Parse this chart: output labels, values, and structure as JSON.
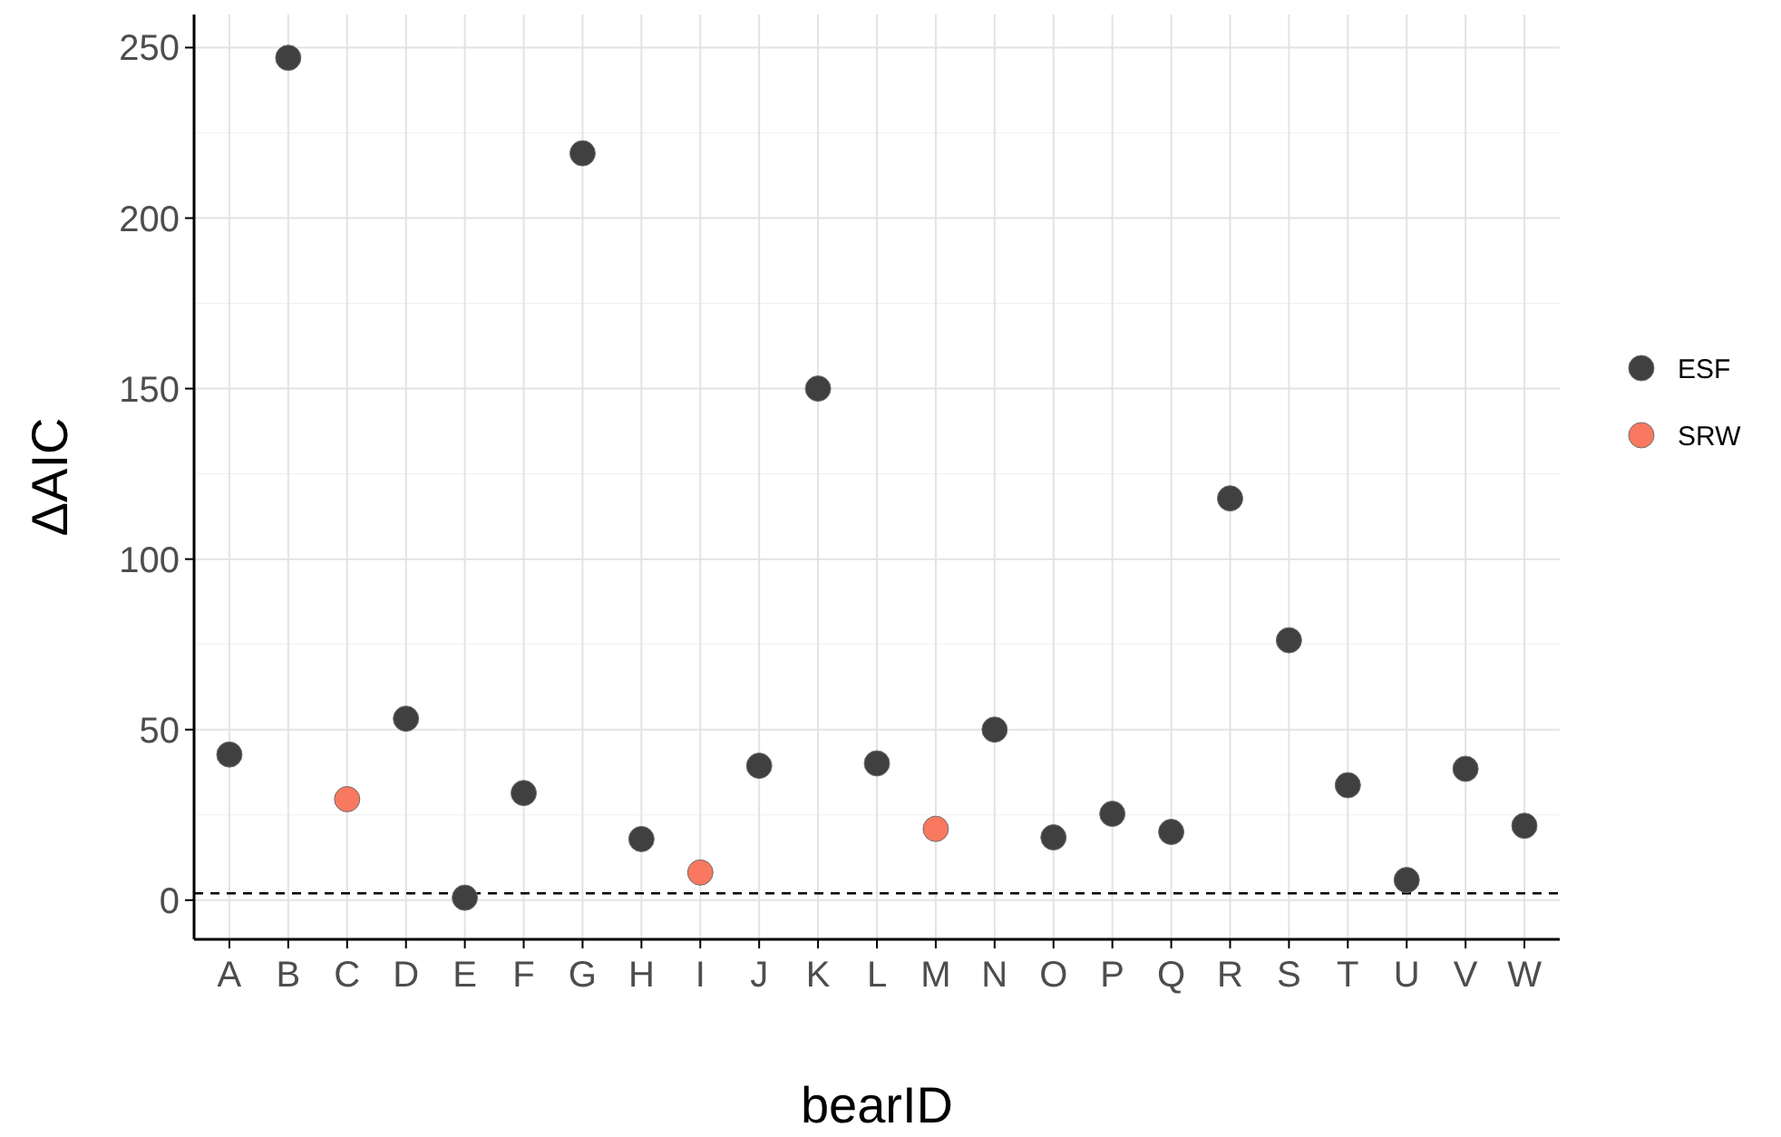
{
  "chart_data": {
    "type": "scatter",
    "xlabel": "bearID",
    "ylabel": "ΔAIC",
    "categories": [
      "A",
      "B",
      "C",
      "D",
      "E",
      "F",
      "G",
      "H",
      "I",
      "J",
      "K",
      "L",
      "M",
      "N",
      "O",
      "P",
      "Q",
      "R",
      "S",
      "T",
      "U",
      "V",
      "W"
    ],
    "series": [
      {
        "name": "ESF",
        "color": "#404040",
        "values": [
          42.7,
          247,
          null,
          53.2,
          0.7,
          31.4,
          219,
          17.9,
          null,
          39.4,
          150,
          40.1,
          null,
          50,
          18.4,
          25.3,
          20,
          117.8,
          76.2,
          33.7,
          5.9,
          38.5,
          21.8
        ]
      },
      {
        "name": "SRW",
        "color": "#f8795f",
        "values": [
          null,
          null,
          29.6,
          null,
          null,
          null,
          null,
          null,
          8.1,
          null,
          null,
          null,
          20.9,
          null,
          null,
          null,
          null,
          null,
          null,
          null,
          null,
          null,
          null
        ]
      }
    ],
    "ylim": [
      -11.5,
      259.7
    ],
    "yticks": [
      0,
      50,
      100,
      150,
      200,
      250
    ],
    "grid": true,
    "legend": "right",
    "marker": "circle",
    "ref_lines": [
      {
        "axis": "y",
        "value": 2,
        "color": "#000000",
        "line_style": "dashed"
      }
    ]
  }
}
